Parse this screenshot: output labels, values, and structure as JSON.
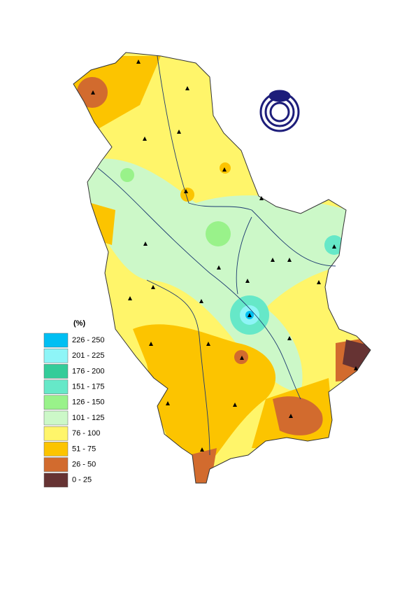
{
  "legend": {
    "title": "(%)",
    "items": [
      {
        "label": "226 - 250",
        "color": "#00bff3"
      },
      {
        "label": "201 - 225",
        "color": "#8ef5f7"
      },
      {
        "label": "176 - 200",
        "color": "#33cc99"
      },
      {
        "label": "151 - 175",
        "color": "#66e8c8"
      },
      {
        "label": "126 - 150",
        "color": "#99f28a"
      },
      {
        "label": "101 - 125",
        "color": "#ccf8c8"
      },
      {
        "label": "76 - 100",
        "color": "#fff56a"
      },
      {
        "label": "51 - 75",
        "color": "#fcc400"
      },
      {
        "label": "26 - 50",
        "color": "#d26b2e"
      },
      {
        "label": "0 - 25",
        "color": "#663333"
      }
    ]
  }
}
